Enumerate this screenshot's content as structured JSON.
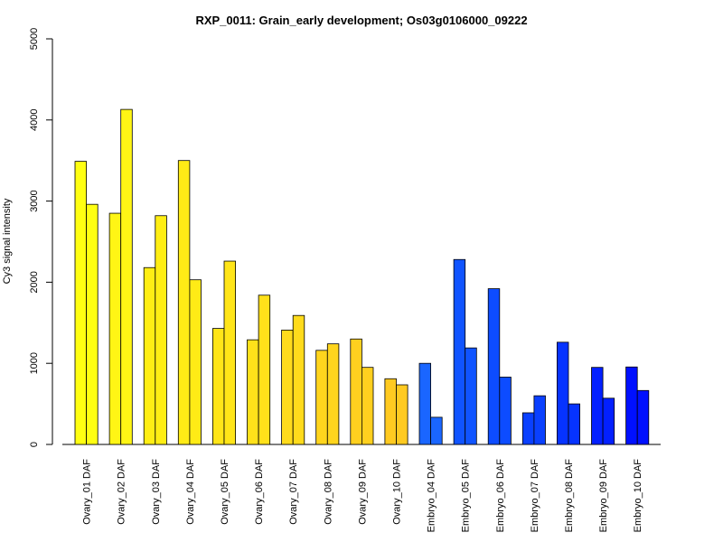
{
  "chart_data": {
    "type": "bar",
    "title": "RXP_0011: Grain_early development; Os03g0106000_09222",
    "ylabel": "Cy3 signal intensity",
    "xlabel": "",
    "ylim": [
      0,
      5000
    ],
    "yticks": [
      0,
      1000,
      2000,
      3000,
      4000,
      5000
    ],
    "grid": false,
    "legend": "none",
    "categories": [
      "Ovary_01 DAF",
      "Ovary_02 DAF",
      "Ovary_03 DAF",
      "Ovary_04 DAF",
      "Ovary_05 DAF",
      "Ovary_06 DAF",
      "Ovary_07 DAF",
      "Ovary_08 DAF",
      "Ovary_09 DAF",
      "Ovary_10 DAF",
      "Embryo_04 DAF",
      "Embryo_05 DAF",
      "Embryo_06 DAF",
      "Embryo_07 DAF",
      "Embryo_08 DAF",
      "Embryo_09 DAF",
      "Embryo_10 DAF"
    ],
    "series": [
      {
        "values": [
          3490,
          2850,
          2180,
          3500,
          1430,
          1290,
          1410,
          1160,
          1300,
          810,
          1000,
          2280,
          1920,
          390,
          1260,
          950,
          955
        ]
      },
      {
        "values": [
          2960,
          4130,
          2820,
          2030,
          2260,
          1840,
          1590,
          1240,
          950,
          735,
          335,
          1190,
          830,
          600,
          500,
          570,
          665
        ]
      }
    ],
    "colors": [
      "#ffff12",
      "#fff515",
      "#ffee14",
      "#ffeb16",
      "#ffe518",
      "#ffe11a",
      "#ffdb1c",
      "#ffd51d",
      "#ffd01f",
      "#ffca21",
      "#1a66ff",
      "#1054ff",
      "#0d4cff",
      "#0a40ff",
      "#0633ff",
      "#0320ff",
      "#0010ff"
    ]
  }
}
